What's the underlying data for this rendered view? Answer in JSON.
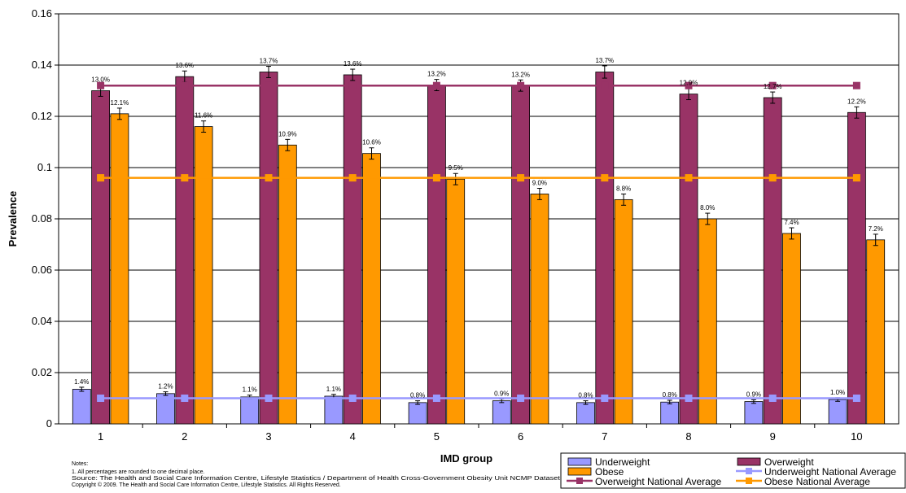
{
  "chart_data": {
    "type": "bar",
    "title": "",
    "xlabel": "IMD group",
    "ylabel": "Prevalence",
    "ylim": [
      0,
      0.16
    ],
    "yticks": [
      "0",
      "0.02",
      "0.04",
      "0.06",
      "0.08",
      "0.1",
      "0.12",
      "0.14",
      "0.16"
    ],
    "ytick_values": [
      0,
      0.02,
      0.04,
      0.06,
      0.08,
      0.1,
      0.12,
      0.14,
      0.16
    ],
    "categories": [
      "1",
      "2",
      "3",
      "4",
      "5",
      "6",
      "7",
      "8",
      "9",
      "10"
    ],
    "grid": "horizontal",
    "legend_position": "bottom-right",
    "series": [
      {
        "name": "Underweight",
        "color": "#9999ff",
        "values": [
          0.0135,
          0.0118,
          0.0105,
          0.0108,
          0.0083,
          0.009,
          0.0083,
          0.0085,
          0.0087,
          0.0095
        ],
        "errors": [
          0.0008,
          0.0007,
          0.0007,
          0.0007,
          0.0007,
          0.0007,
          0.0007,
          0.0007,
          0.0007,
          0.0007
        ],
        "labels": [
          "1.4%",
          "1.2%",
          "1.1%",
          "1.1%",
          "0.8%",
          "0.9%",
          "0.8%",
          "0.8%",
          "0.9%",
          "1.0%"
        ]
      },
      {
        "name": "Overweight",
        "color": "#993366",
        "values": [
          0.13,
          0.1355,
          0.1373,
          0.1362,
          0.1322,
          0.132,
          0.1373,
          0.1287,
          0.1273,
          0.1215
        ],
        "errors": [
          0.0022,
          0.0022,
          0.0022,
          0.0022,
          0.0022,
          0.0022,
          0.0024,
          0.0022,
          0.0022,
          0.0022
        ],
        "labels": [
          "13.0%",
          "13.6%",
          "13.7%",
          "13.6%",
          "13.2%",
          "13.2%",
          "13.7%",
          "12.9%",
          "12.7%",
          "12.2%"
        ]
      },
      {
        "name": "Obese",
        "color": "#ff9900",
        "values": [
          0.121,
          0.116,
          0.1088,
          0.1055,
          0.0955,
          0.0897,
          0.0875,
          0.08,
          0.0743,
          0.0718
        ],
        "errors": [
          0.0022,
          0.0022,
          0.0022,
          0.0022,
          0.0022,
          0.0022,
          0.0022,
          0.0022,
          0.0022,
          0.0022
        ],
        "labels": [
          "12.1%",
          "11.6%",
          "10.9%",
          "10.6%",
          "9.5%",
          "9.0%",
          "8.8%",
          "8.0%",
          "7.4%",
          "7.2%"
        ]
      }
    ],
    "lines": [
      {
        "name": "Underweight National Average",
        "color": "#9999ff",
        "value": 0.01
      },
      {
        "name": "Overweight National Average",
        "color": "#993366",
        "value": 0.132
      },
      {
        "name": "Obese National Average",
        "color": "#ff9900",
        "value": 0.096
      }
    ]
  },
  "notes": {
    "heading": "Notes:",
    "line1": "1. All percentages are rounded to one decimal place.",
    "line2": "Source: The Health and Social Care Information Centre, Lifestyle Statistics / Department of Health Cross-Government Obesity Unit NCMP Dataset",
    "line3": "Copyright © 2009. The Health and Social Care Information Centre, Lifestyle Statistics. All Rights Reserved."
  }
}
